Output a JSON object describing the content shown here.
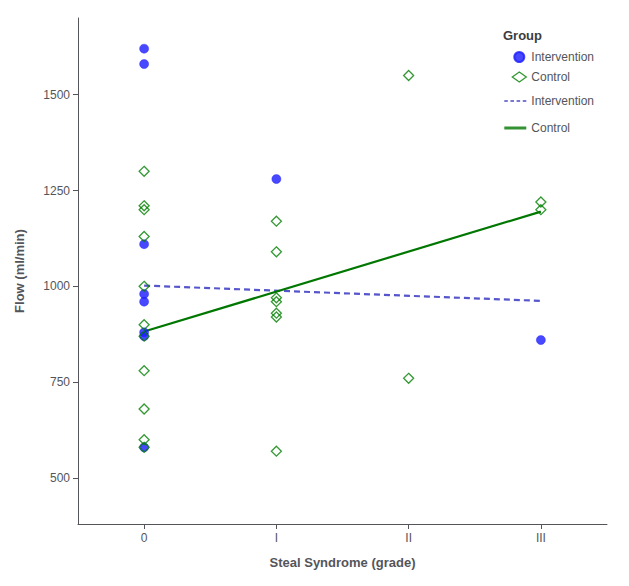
{
  "chart_data": {
    "type": "scatter",
    "xlabel": "Steal Syndrome (grade)",
    "ylabel": "Flow (ml/min)",
    "xlim": [
      -0.5,
      3.5
    ],
    "ylim": [
      380,
      1700
    ],
    "xticks": [
      0,
      {
        "value": 1,
        "label": "I"
      },
      {
        "value": 2,
        "label": "II"
      },
      {
        "value": 3,
        "label": "III"
      }
    ],
    "yticks": [
      500,
      750,
      1000,
      1250,
      1500
    ],
    "grid": false,
    "legend": "upper right",
    "legend_title": "Group",
    "series": [
      {
        "name": "Intervention",
        "type": "scatter",
        "marker": "circle",
        "color": "#1a1aff",
        "x": [
          0,
          0,
          0,
          0,
          0,
          0,
          0,
          0,
          1,
          3
        ],
        "values": [
          1620,
          1580,
          1110,
          980,
          960,
          880,
          870,
          580,
          1280,
          860
        ]
      },
      {
        "name": "Control",
        "type": "scatter",
        "marker": "open_diamond",
        "color": "#008000",
        "x": [
          0,
          0,
          0,
          0,
          0,
          0,
          0,
          0,
          0,
          0,
          0,
          1,
          1,
          1,
          1,
          1,
          1,
          1,
          2,
          2,
          3,
          3
        ],
        "values": [
          1300,
          1210,
          1200,
          1130,
          1000,
          900,
          870,
          780,
          680,
          600,
          580,
          1170,
          1090,
          970,
          960,
          930,
          920,
          570,
          1550,
          760,
          1220,
          1200
        ]
      },
      {
        "name": "Intervention",
        "type": "line",
        "line_style": "dashed",
        "color": "#5555cc",
        "x": [
          0,
          3
        ],
        "values": [
          1002,
          962
        ]
      },
      {
        "name": "Control",
        "type": "line",
        "line_style": "solid",
        "color": "#007700",
        "x": [
          0,
          3
        ],
        "values": [
          882,
          1195
        ]
      }
    ]
  }
}
